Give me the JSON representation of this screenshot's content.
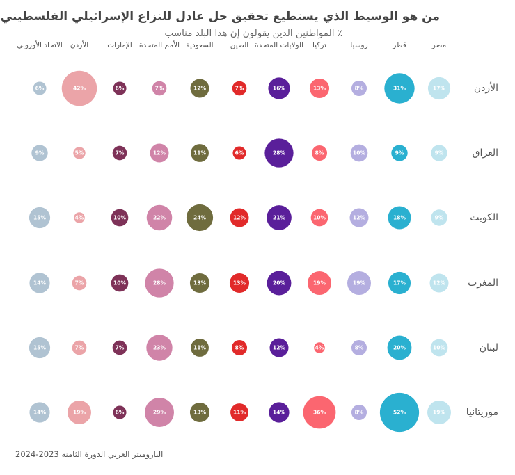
{
  "chart_data": {
    "type": "bubble-matrix",
    "title": "من هو الوسيط الذي يستطيع تحقيق حل عادل للنزاع الإسرائيلي الفلسطيني؟",
    "subtitle": "٪ المواطنين الذين يقولون إن هذا البلد مناسب",
    "columns": [
      "مصر",
      "قطر",
      "روسيا",
      "تركيا",
      "الولايات المتحدة",
      "الصين",
      "السعودية",
      "الأمم المتحدة",
      "الإمارات",
      "الأردن",
      "الاتحاد الأوروبي"
    ],
    "rows": [
      "الأردن",
      "العراق",
      "الكويت",
      "المغرب",
      "لبنان",
      "موريتانيا"
    ],
    "values": [
      [
        17,
        31,
        8,
        13,
        16,
        7,
        12,
        7,
        6,
        42,
        6
      ],
      [
        9,
        9,
        10,
        8,
        28,
        6,
        11,
        12,
        7,
        5,
        9
      ],
      [
        9,
        18,
        12,
        10,
        21,
        12,
        24,
        22,
        10,
        4,
        15
      ],
      [
        12,
        17,
        19,
        19,
        20,
        13,
        13,
        28,
        10,
        7,
        14
      ],
      [
        10,
        20,
        8,
        4,
        12,
        8,
        11,
        23,
        7,
        7,
        15
      ],
      [
        19,
        52,
        8,
        36,
        14,
        11,
        13,
        29,
        6,
        19,
        14
      ]
    ],
    "value_suffix": "%",
    "colors": [
      "#bfe4ee",
      "#2ab0d0",
      "#b4aee0",
      "#fb6670",
      "#5a1f9a",
      "#e12a2a",
      "#6f6c3e",
      "#d084a8",
      "#7e3258",
      "#eba4a8",
      "#b0c3d2"
    ],
    "label_colors": [
      "#ffffff",
      "#ffffff",
      "#ffffff",
      "#ffffff",
      "#ffffff",
      "#ffffff",
      "#ffffff",
      "#ffffff",
      "#ffffff",
      "#ffffff",
      "#ffffff"
    ]
  },
  "source": "الباروميتر العربي الدورة الثامنة  2023-2024"
}
